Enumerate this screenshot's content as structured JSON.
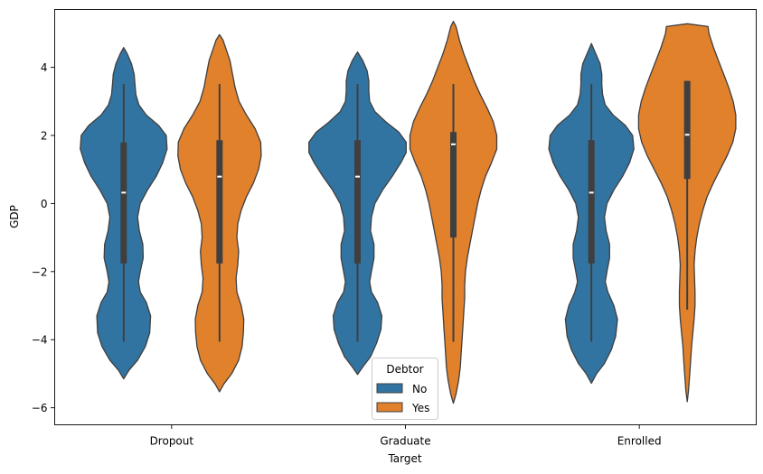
{
  "chart_data": {
    "type": "violin",
    "xlabel": "Target",
    "ylabel": "GDP",
    "categories": [
      "Dropout",
      "Graduate",
      "Enrolled"
    ],
    "ylim": [
      -6.5,
      5.7
    ],
    "yticks": [
      4,
      2,
      0,
      -2,
      -4,
      -6
    ],
    "grid": false,
    "legend": {
      "title": "Debtor",
      "placement": "bottom-center",
      "entries": [
        {
          "label": "No",
          "color": "#3274a1"
        },
        {
          "label": "Yes",
          "color": "#e1812c"
        }
      ]
    },
    "series": [
      {
        "name": "No",
        "color": "#3274a1",
        "violins": [
          {
            "category": "Dropout",
            "min": -4.06,
            "q1": -1.76,
            "median": 0.32,
            "q3": 1.79,
            "max": 3.51,
            "kde_min": -5.15,
            "kde_max": 4.58,
            "profile": [
              [
                -5.15,
                0.0
              ],
              [
                -4.9,
                0.12
              ],
              [
                -4.6,
                0.32
              ],
              [
                -4.2,
                0.5
              ],
              [
                -3.8,
                0.6
              ],
              [
                -3.3,
                0.62
              ],
              [
                -2.9,
                0.52
              ],
              [
                -2.6,
                0.38
              ],
              [
                -2.3,
                0.34
              ],
              [
                -2.0,
                0.38
              ],
              [
                -1.6,
                0.45
              ],
              [
                -1.2,
                0.44
              ],
              [
                -0.8,
                0.36
              ],
              [
                -0.4,
                0.32
              ],
              [
                0.0,
                0.38
              ],
              [
                0.4,
                0.55
              ],
              [
                0.8,
                0.75
              ],
              [
                1.2,
                0.9
              ],
              [
                1.6,
                1.0
              ],
              [
                2.0,
                0.98
              ],
              [
                2.3,
                0.8
              ],
              [
                2.6,
                0.52
              ],
              [
                2.9,
                0.35
              ],
              [
                3.2,
                0.28
              ],
              [
                3.5,
                0.26
              ],
              [
                3.8,
                0.24
              ],
              [
                4.1,
                0.18
              ],
              [
                4.4,
                0.08
              ],
              [
                4.58,
                0.0
              ]
            ]
          },
          {
            "category": "Graduate",
            "min": -4.06,
            "q1": -1.76,
            "median": 0.79,
            "q3": 1.86,
            "max": 3.51,
            "kde_min": -5.02,
            "kde_max": 4.45,
            "profile": [
              [
                -5.02,
                0.0
              ],
              [
                -4.8,
                0.12
              ],
              [
                -4.5,
                0.3
              ],
              [
                -4.1,
                0.44
              ],
              [
                -3.7,
                0.54
              ],
              [
                -3.3,
                0.56
              ],
              [
                -2.9,
                0.46
              ],
              [
                -2.6,
                0.32
              ],
              [
                -2.3,
                0.28
              ],
              [
                -2.0,
                0.32
              ],
              [
                -1.6,
                0.38
              ],
              [
                -1.2,
                0.38
              ],
              [
                -0.8,
                0.3
              ],
              [
                -0.4,
                0.32
              ],
              [
                0.0,
                0.4
              ],
              [
                0.4,
                0.58
              ],
              [
                0.8,
                0.8
              ],
              [
                1.2,
                1.0
              ],
              [
                1.5,
                1.12
              ],
              [
                1.8,
                1.12
              ],
              [
                2.1,
                0.95
              ],
              [
                2.4,
                0.65
              ],
              [
                2.7,
                0.4
              ],
              [
                3.0,
                0.28
              ],
              [
                3.3,
                0.26
              ],
              [
                3.6,
                0.26
              ],
              [
                3.9,
                0.22
              ],
              [
                4.2,
                0.12
              ],
              [
                4.45,
                0.0
              ]
            ]
          },
          {
            "category": "Enrolled",
            "min": -4.06,
            "q1": -1.76,
            "median": 0.32,
            "q3": 1.86,
            "max": 3.51,
            "kde_min": -5.28,
            "kde_max": 4.7,
            "profile": [
              [
                -5.28,
                0.0
              ],
              [
                -5.0,
                0.12
              ],
              [
                -4.7,
                0.3
              ],
              [
                -4.3,
                0.46
              ],
              [
                -3.9,
                0.56
              ],
              [
                -3.4,
                0.6
              ],
              [
                -3.0,
                0.52
              ],
              [
                -2.6,
                0.38
              ],
              [
                -2.3,
                0.32
              ],
              [
                -2.0,
                0.36
              ],
              [
                -1.6,
                0.42
              ],
              [
                -1.2,
                0.42
              ],
              [
                -0.8,
                0.34
              ],
              [
                -0.4,
                0.3
              ],
              [
                0.0,
                0.36
              ],
              [
                0.4,
                0.52
              ],
              [
                0.8,
                0.72
              ],
              [
                1.2,
                0.88
              ],
              [
                1.6,
                0.98
              ],
              [
                2.0,
                0.95
              ],
              [
                2.3,
                0.78
              ],
              [
                2.6,
                0.5
              ],
              [
                2.9,
                0.32
              ],
              [
                3.2,
                0.26
              ],
              [
                3.5,
                0.24
              ],
              [
                3.8,
                0.24
              ],
              [
                4.1,
                0.2
              ],
              [
                4.4,
                0.1
              ],
              [
                4.7,
                0.0
              ]
            ]
          }
        ]
      },
      {
        "name": "Yes",
        "color": "#e1812c",
        "violins": [
          {
            "category": "Dropout",
            "min": -4.06,
            "q1": -1.76,
            "median": 0.79,
            "q3": 1.86,
            "max": 3.51,
            "kde_min": -5.53,
            "kde_max": 4.96,
            "profile": [
              [
                -5.53,
                0.0
              ],
              [
                -5.3,
                0.1
              ],
              [
                -5.0,
                0.28
              ],
              [
                -4.6,
                0.44
              ],
              [
                -4.2,
                0.52
              ],
              [
                -3.8,
                0.55
              ],
              [
                -3.4,
                0.56
              ],
              [
                -3.0,
                0.5
              ],
              [
                -2.6,
                0.4
              ],
              [
                -2.2,
                0.38
              ],
              [
                -1.8,
                0.42
              ],
              [
                -1.4,
                0.44
              ],
              [
                -1.0,
                0.4
              ],
              [
                -0.6,
                0.42
              ],
              [
                -0.2,
                0.5
              ],
              [
                0.2,
                0.62
              ],
              [
                0.6,
                0.78
              ],
              [
                1.0,
                0.9
              ],
              [
                1.4,
                0.96
              ],
              [
                1.8,
                0.95
              ],
              [
                2.2,
                0.82
              ],
              [
                2.6,
                0.62
              ],
              [
                3.0,
                0.45
              ],
              [
                3.4,
                0.36
              ],
              [
                3.8,
                0.3
              ],
              [
                4.2,
                0.24
              ],
              [
                4.5,
                0.16
              ],
              [
                4.8,
                0.08
              ],
              [
                4.96,
                0.0
              ]
            ]
          },
          {
            "category": "Graduate",
            "min": -4.06,
            "q1": -1.0,
            "median": 1.74,
            "q3": 2.1,
            "max": 3.51,
            "kde_min": -5.87,
            "kde_max": 5.35,
            "profile": [
              [
                -5.87,
                0.0
              ],
              [
                -5.6,
                0.06
              ],
              [
                -5.2,
                0.12
              ],
              [
                -4.8,
                0.16
              ],
              [
                -4.4,
                0.18
              ],
              [
                -4.0,
                0.2
              ],
              [
                -3.6,
                0.22
              ],
              [
                -3.2,
                0.24
              ],
              [
                -2.8,
                0.26
              ],
              [
                -2.4,
                0.26
              ],
              [
                -2.0,
                0.28
              ],
              [
                -1.6,
                0.32
              ],
              [
                -1.2,
                0.38
              ],
              [
                -0.8,
                0.44
              ],
              [
                -0.4,
                0.5
              ],
              [
                0.0,
                0.56
              ],
              [
                0.4,
                0.64
              ],
              [
                0.8,
                0.74
              ],
              [
                1.2,
                0.88
              ],
              [
                1.6,
                1.0
              ],
              [
                2.0,
                1.0
              ],
              [
                2.4,
                0.92
              ],
              [
                2.8,
                0.78
              ],
              [
                3.2,
                0.62
              ],
              [
                3.6,
                0.48
              ],
              [
                4.0,
                0.36
              ],
              [
                4.4,
                0.24
              ],
              [
                4.8,
                0.14
              ],
              [
                5.2,
                0.06
              ],
              [
                5.35,
                0.0
              ]
            ]
          },
          {
            "category": "Enrolled",
            "min": -3.12,
            "q1": 0.72,
            "median": 2.02,
            "q3": 3.6,
            "max": 3.6,
            "kde_min": -5.82,
            "kde_max": 5.28,
            "profile": [
              [
                -5.82,
                0.0
              ],
              [
                -5.5,
                0.03
              ],
              [
                -5.0,
                0.06
              ],
              [
                -4.6,
                0.08
              ],
              [
                -4.2,
                0.1
              ],
              [
                -3.8,
                0.13
              ],
              [
                -3.4,
                0.16
              ],
              [
                -3.0,
                0.18
              ],
              [
                -2.6,
                0.18
              ],
              [
                -2.2,
                0.17
              ],
              [
                -1.8,
                0.16
              ],
              [
                -1.4,
                0.18
              ],
              [
                -1.0,
                0.22
              ],
              [
                -0.6,
                0.28
              ],
              [
                -0.2,
                0.36
              ],
              [
                0.2,
                0.46
              ],
              [
                0.6,
                0.6
              ],
              [
                1.0,
                0.76
              ],
              [
                1.4,
                0.92
              ],
              [
                1.8,
                1.05
              ],
              [
                2.2,
                1.12
              ],
              [
                2.6,
                1.12
              ],
              [
                3.0,
                1.06
              ],
              [
                3.4,
                0.96
              ],
              [
                3.8,
                0.84
              ],
              [
                4.2,
                0.72
              ],
              [
                4.6,
                0.6
              ],
              [
                5.0,
                0.5
              ],
              [
                5.2,
                0.48
              ],
              [
                5.28,
                0.0
              ]
            ]
          }
        ]
      }
    ]
  }
}
